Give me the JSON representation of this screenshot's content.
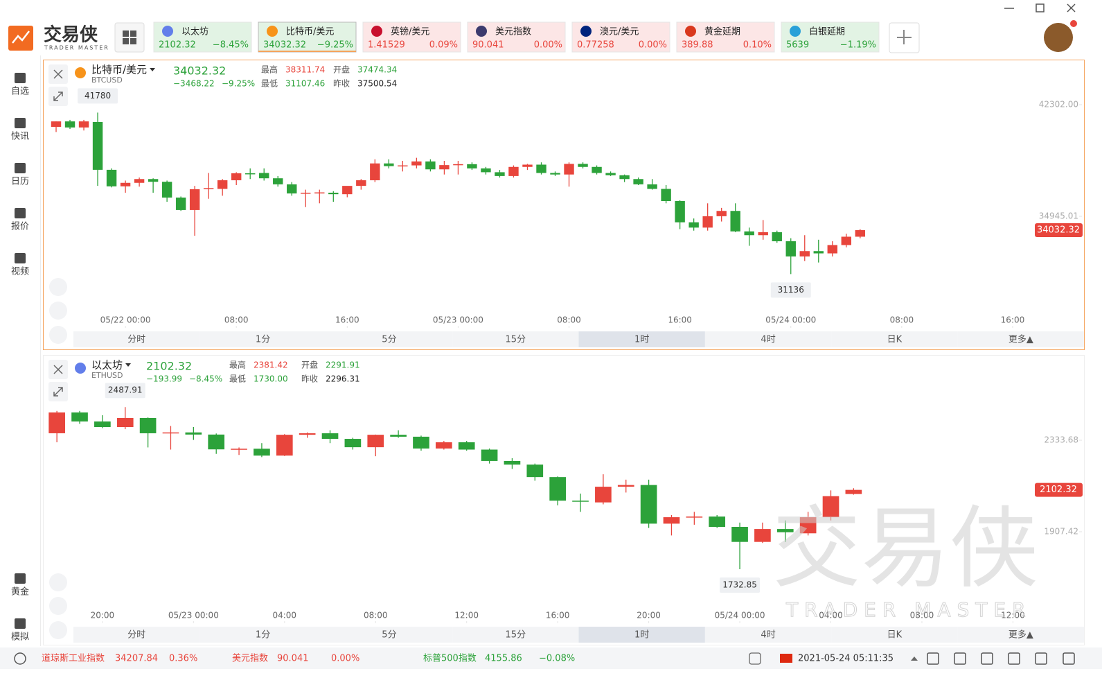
{
  "header": {
    "logo": {
      "name": "交易侠",
      "sub": "TRADER MASTER"
    },
    "tickers": [
      {
        "name": "以太坊",
        "price": "2102.32",
        "change": "−8.45%"
      },
      {
        "name": "比特币/美元",
        "price": "34032.32",
        "change": "−9.25%"
      },
      {
        "name": "英镑/美元",
        "price": "1.41529",
        "change": "0.09%"
      },
      {
        "name": "美元指数",
        "price": "90.041",
        "change": "0.00%"
      },
      {
        "name": "澳元/美元",
        "price": "0.77258",
        "change": "0.00%"
      },
      {
        "name": "黄金延期",
        "price": "389.88",
        "change": "0.10%"
      },
      {
        "name": "白银延期",
        "price": "5639",
        "change": "−1.19%"
      }
    ],
    "active_ticker": "比特币/美元"
  },
  "sidebar": {
    "top": [
      "自选",
      "快讯",
      "日历",
      "报价",
      "视频"
    ],
    "bottom": [
      "黄金",
      "模拟"
    ]
  },
  "panels": [
    {
      "symbol": "比特币/美元",
      "code": "BTCUSD",
      "price": "34032.32",
      "change": "−3468.22",
      "change_pct": "−9.25%",
      "stats": [
        {
          "label": "最高",
          "value": "38311.74",
          "color": "#e8453c"
        },
        {
          "label": "开盘",
          "value": "37474.34",
          "color": "#2ca23a"
        },
        {
          "label": "最低",
          "value": "31107.46",
          "color": "#2ca23a"
        },
        {
          "label": "昨收",
          "value": "37500.54",
          "color": "#222222"
        }
      ]
    },
    {
      "symbol": "以太坊",
      "code": "ETHUSD",
      "price": "2102.32",
      "change": "−193.99",
      "change_pct": "−8.45%",
      "stats": [
        {
          "label": "最高",
          "value": "2381.42",
          "color": "#e8453c"
        },
        {
          "label": "开盘",
          "value": "2291.91",
          "color": "#2ca23a"
        },
        {
          "label": "最低",
          "value": "1730.00",
          "color": "#2ca23a"
        },
        {
          "label": "昨收",
          "value": "2296.31",
          "color": "#222222"
        }
      ]
    }
  ],
  "timeframes": [
    "分时",
    "1分",
    "5分",
    "15分",
    "1时",
    "4时",
    "日K",
    "更多▲"
  ],
  "active_timeframe": "1时",
  "chart_data": [
    {
      "type": "candlestick",
      "up_color": "#e8453c",
      "down_color": "#2ca23a",
      "x": [
        0,
        1,
        2,
        3,
        4,
        5,
        6,
        7,
        8,
        9,
        10,
        11,
        12,
        13,
        14,
        15,
        16,
        17,
        18,
        19,
        20,
        21,
        22,
        23,
        24,
        25,
        26,
        27,
        28,
        29,
        30,
        31,
        32,
        33,
        34,
        35,
        36,
        37,
        38,
        39,
        40,
        41,
        42,
        43,
        44,
        45,
        46,
        47,
        48,
        49,
        50,
        51,
        52,
        53,
        54,
        55,
        56,
        57,
        58
      ],
      "open": [
        40840,
        41200,
        40800,
        41160,
        38010,
        36920,
        37150,
        37400,
        37220,
        36180,
        35360,
        36730,
        36750,
        37320,
        37780,
        37800,
        37450,
        37050,
        36450,
        36500,
        36500,
        36400,
        36950,
        37320,
        38430,
        38250,
        38300,
        38560,
        38040,
        38320,
        38380,
        38100,
        37850,
        37600,
        38200,
        38350,
        37800,
        37700,
        38400,
        38200,
        37800,
        37650,
        37400,
        37050,
        36750,
        35950,
        34550,
        34200,
        34950,
        35300,
        33950,
        33700,
        33900,
        33300,
        32300,
        32650,
        32500,
        33050,
        33600
      ],
      "high": [
        41200,
        41300,
        41300,
        41780,
        38100,
        37300,
        37500,
        37450,
        37300,
        36250,
        36950,
        37800,
        37400,
        37850,
        38100,
        38100,
        37600,
        37200,
        36700,
        36700,
        36600,
        36800,
        37400,
        38700,
        38700,
        38600,
        38800,
        38700,
        38600,
        38600,
        38500,
        38200,
        38000,
        38300,
        38400,
        38500,
        37900,
        38500,
        38500,
        38300,
        37900,
        37700,
        37500,
        37400,
        37000,
        36000,
        34800,
        35800,
        35500,
        35800,
        34200,
        34700,
        34000,
        33500,
        33700,
        33400,
        33300,
        33800,
        34100
      ],
      "low": [
        40500,
        40700,
        40600,
        36950,
        36850,
        36500,
        36900,
        36500,
        35900,
        35300,
        33660,
        36100,
        36300,
        37000,
        37400,
        37300,
        36900,
        36300,
        35550,
        35800,
        35900,
        36200,
        36700,
        37200,
        38100,
        37900,
        38100,
        37900,
        37700,
        37700,
        38000,
        37700,
        37500,
        37500,
        38000,
        37700,
        37600,
        36900,
        38100,
        37700,
        37600,
        37200,
        37000,
        36700,
        35800,
        34100,
        34000,
        34000,
        34600,
        33900,
        33000,
        33400,
        33200,
        31136,
        32000,
        31900,
        32300,
        32900,
        33500
      ],
      "close": [
        41200,
        40800,
        41200,
        38010,
        36920,
        37150,
        37400,
        37220,
        36180,
        35360,
        36730,
        36800,
        37320,
        37780,
        37760,
        37450,
        37050,
        36450,
        36500,
        36520,
        36400,
        36950,
        37320,
        38430,
        38250,
        38300,
        38560,
        38040,
        38320,
        38380,
        38100,
        37850,
        37600,
        38200,
        38350,
        37800,
        37700,
        38400,
        38200,
        37800,
        37650,
        37400,
        37050,
        36750,
        35950,
        34550,
        34200,
        34950,
        35300,
        33950,
        33700,
        33900,
        33300,
        32300,
        32650,
        32500,
        33050,
        33600,
        34032.32
      ],
      "xlim": [
        -0.55,
        70.5
      ],
      "xticks": [
        {
          "value": 5,
          "label": "05/22 00:00"
        },
        {
          "value": 13,
          "label": "08:00"
        },
        {
          "value": 21,
          "label": "16:00"
        },
        {
          "value": 29,
          "label": "05/23 00:00"
        },
        {
          "value": 37,
          "label": "08:00"
        },
        {
          "value": 45,
          "label": "16:00"
        },
        {
          "value": 53,
          "label": "05/24 00:00"
        },
        {
          "value": 61,
          "label": "08:00"
        },
        {
          "value": 69,
          "label": "16:00"
        }
      ],
      "ylim": [
        28640,
        44860
      ],
      "yticks": [
        {
          "value": 42302,
          "label": "42302.00"
        },
        {
          "value": 34945.01,
          "label": "34945.01"
        }
      ]
    },
    {
      "type": "candlestick",
      "up_color": "#e8453c",
      "down_color": "#2ca23a",
      "x": [
        0,
        1,
        2,
        3,
        4,
        5,
        6,
        7,
        8,
        9,
        10,
        11,
        12,
        13,
        14,
        15,
        16,
        17,
        18,
        19,
        20,
        21,
        22,
        23,
        24,
        25,
        26,
        27,
        28,
        29,
        30,
        31,
        32,
        33,
        34,
        35
      ],
      "open": [
        2366,
        2463,
        2421,
        2395,
        2437,
        2366,
        2370,
        2360,
        2291,
        2294,
        2262,
        2359,
        2366,
        2340,
        2301,
        2359,
        2350,
        2295,
        2324,
        2290,
        2237,
        2220,
        2162,
        2052,
        2044,
        2117,
        2125,
        1945,
        1975,
        1978,
        1930,
        1860,
        1920,
        1900,
        1975,
        2083
      ],
      "high": [
        2470,
        2470,
        2450,
        2487.91,
        2440,
        2400,
        2395,
        2365,
        2300,
        2320,
        2362,
        2370,
        2380,
        2345,
        2360,
        2380,
        2355,
        2330,
        2330,
        2295,
        2250,
        2225,
        2165,
        2085,
        2175,
        2150,
        2150,
        1985,
        2000,
        1985,
        1950,
        1950,
        1960,
        2000,
        2100,
        2110
      ],
      "low": [
        2324,
        2410,
        2390,
        2385,
        2300,
        2290,
        2335,
        2270,
        2265,
        2255,
        2260,
        2345,
        2320,
        2290,
        2259,
        2345,
        2285,
        2290,
        2285,
        2225,
        2200,
        2145,
        2030,
        2000,
        2035,
        2090,
        1925,
        1890,
        1940,
        1925,
        1732.85,
        1855,
        1860,
        1890,
        1960,
        2080
      ],
      "close": [
        2463,
        2421,
        2395,
        2437,
        2366,
        2370,
        2360,
        2291,
        2294,
        2262,
        2359,
        2366,
        2340,
        2301,
        2359,
        2350,
        2295,
        2324,
        2290,
        2237,
        2220,
        2162,
        2052,
        2050,
        2117,
        2125,
        1945,
        1975,
        1978,
        1930,
        1860,
        1920,
        1905,
        1975,
        2073,
        2102.32
      ],
      "xlim": [
        -0.37,
        42.9
      ],
      "xticks": [
        {
          "value": 2,
          "label": "20:00"
        },
        {
          "value": 6,
          "label": "05/23 00:00"
        },
        {
          "value": 10,
          "label": "04:00"
        },
        {
          "value": 14,
          "label": "08:00"
        },
        {
          "value": 18,
          "label": "12:00"
        },
        {
          "value": 22,
          "label": "16:00"
        },
        {
          "value": 26,
          "label": "20:00"
        },
        {
          "value": 30,
          "label": "05/24 00:00"
        },
        {
          "value": 34,
          "label": "04:00"
        },
        {
          "value": 38,
          "label": "08:00"
        },
        {
          "value": 42,
          "label": "12:00"
        }
      ],
      "ylim": [
        1542.5,
        2705
      ],
      "yticks": [
        {
          "value": 2333.68,
          "label": "2333.68"
        },
        {
          "value": 1907.42,
          "label": "1907.42"
        }
      ]
    }
  ],
  "status": {
    "indices": [
      {
        "name": "道琼斯工业指数",
        "value": "34207.84",
        "change": "0.36%"
      },
      {
        "name": "美元指数",
        "value": "90.041",
        "change": "0.00%"
      },
      {
        "name": "标普500指数",
        "value": "4155.86",
        "change": "−0.08%"
      }
    ],
    "datetime": "2021-05-24 05:11:35"
  }
}
